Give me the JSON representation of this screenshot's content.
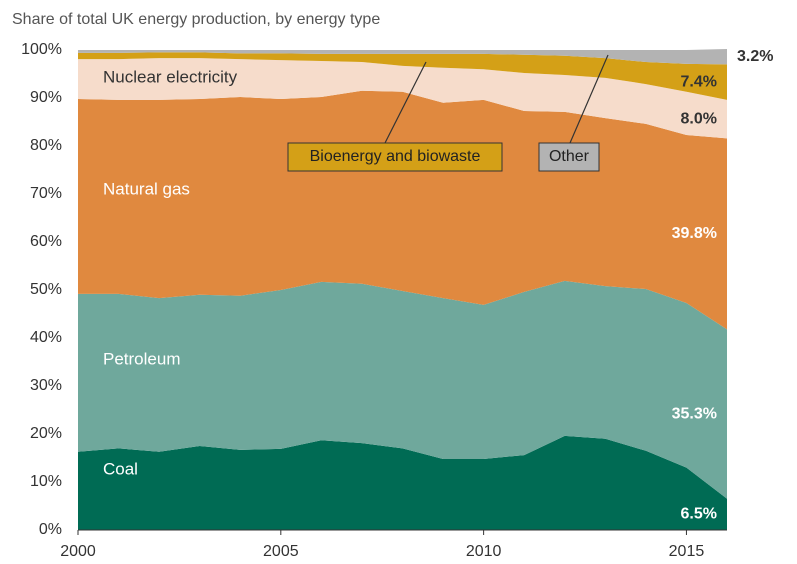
{
  "chart_data": {
    "type": "stacked_area",
    "title": "Share of total UK energy production, by energy type",
    "x": [
      2000,
      2001,
      2002,
      2003,
      2004,
      2005,
      2006,
      2007,
      2008,
      2009,
      2010,
      2011,
      2012,
      2013,
      2014,
      2015,
      2016
    ],
    "xlim": [
      2000,
      2016
    ],
    "xticks": [
      2000,
      2005,
      2010,
      2015
    ],
    "ylim": [
      0,
      100
    ],
    "yticks": [
      {
        "value": 0,
        "label": "0%"
      },
      {
        "value": 10,
        "label": "10%"
      },
      {
        "value": 20,
        "label": "20%"
      },
      {
        "value": 30,
        "label": "30%"
      },
      {
        "value": 40,
        "label": "40%"
      },
      {
        "value": 50,
        "label": "50%"
      },
      {
        "value": 60,
        "label": "60%"
      },
      {
        "value": 70,
        "label": "70%"
      },
      {
        "value": 80,
        "label": "80%"
      },
      {
        "value": 90,
        "label": "90%"
      },
      {
        "value": 100,
        "label": "100%"
      }
    ],
    "grid": false,
    "series": [
      {
        "name": "Coal",
        "color": "#006b54",
        "values": [
          16.3,
          17,
          16.3,
          17.5,
          16.7,
          16.9,
          18.7,
          18.1,
          17,
          14.8,
          14.8,
          15.6,
          19.6,
          19,
          16.5,
          13,
          6.5
        ],
        "value_labels": [
          null,
          null,
          null,
          null,
          null,
          null,
          null,
          null,
          null,
          null,
          null,
          null,
          null,
          null,
          null,
          null,
          "6.5%"
        ]
      },
      {
        "name": "Petroleum",
        "color": "#6fa89c",
        "values": [
          32.9,
          32.2,
          32,
          31.5,
          32.1,
          33.1,
          33,
          33.2,
          32.8,
          33.5,
          32.1,
          34,
          32.3,
          31.8,
          33.7,
          34.3,
          35.3
        ],
        "value_labels": [
          null,
          null,
          null,
          null,
          null,
          null,
          null,
          null,
          null,
          null,
          null,
          null,
          null,
          null,
          null,
          null,
          "35.3%"
        ]
      },
      {
        "name": "Natural gas",
        "color": "#e0893f",
        "values": [
          40.6,
          40.4,
          41.3,
          40.8,
          41.4,
          39.8,
          38.5,
          40.2,
          41.5,
          40.7,
          42.7,
          37.7,
          35.2,
          35,
          34.4,
          35,
          39.8
        ],
        "value_labels": [
          null,
          null,
          null,
          null,
          null,
          null,
          null,
          null,
          null,
          null,
          null,
          null,
          null,
          null,
          null,
          null,
          "39.8%"
        ]
      },
      {
        "name": "Nuclear electricity",
        "color": "#f6dccb",
        "values": [
          8.3,
          8.5,
          8.7,
          8.5,
          7.9,
          8.1,
          7.5,
          6,
          5.4,
          7.3,
          6.4,
          7.9,
          7.7,
          8.4,
          8.3,
          9,
          8
        ],
        "value_labels": [
          null,
          null,
          null,
          null,
          null,
          null,
          null,
          null,
          null,
          null,
          null,
          null,
          null,
          null,
          null,
          null,
          "8.0%"
        ]
      },
      {
        "name": "Bioenergy and biowaste",
        "color": "#d4a017",
        "values": [
          1.3,
          1.3,
          1.2,
          1.2,
          1.2,
          1.4,
          1.5,
          1.7,
          2.5,
          2.9,
          3.2,
          3.8,
          4,
          4.1,
          4.6,
          5.8,
          7.4
        ],
        "value_labels": [
          null,
          null,
          null,
          null,
          null,
          null,
          null,
          null,
          null,
          null,
          null,
          null,
          null,
          null,
          null,
          null,
          "7.4%"
        ]
      },
      {
        "name": "Other",
        "color": "#b3b3b3",
        "values": [
          0.6,
          0.6,
          0.5,
          0.5,
          0.7,
          0.7,
          0.8,
          0.8,
          0.8,
          0.8,
          0.8,
          1,
          1.2,
          1.7,
          2.5,
          2.9,
          3.2
        ],
        "value_labels": [
          null,
          null,
          null,
          null,
          null,
          null,
          null,
          null,
          null,
          null,
          null,
          null,
          null,
          null,
          null,
          null,
          "3.2%"
        ]
      }
    ]
  }
}
